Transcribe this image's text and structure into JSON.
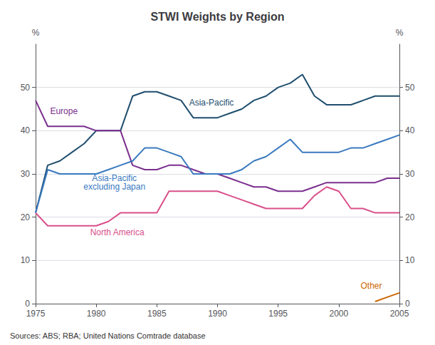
{
  "chart_data": {
    "type": "line",
    "title": "STWI Weights by Region",
    "source": "Sources: ABS; RBA; United Nations Comtrade database",
    "ylabel": "%",
    "y2label": "%",
    "x": [
      1975,
      1976,
      1977,
      1978,
      1979,
      1980,
      1981,
      1982,
      1983,
      1984,
      1985,
      1986,
      1987,
      1988,
      1989,
      1990,
      1991,
      1992,
      1993,
      1994,
      1995,
      1996,
      1997,
      1998,
      1999,
      2000,
      2001,
      2002,
      2003,
      2004,
      2005
    ],
    "series": [
      {
        "name": "Asia-Pacific",
        "color": "#1f4e6e",
        "values": [
          21,
          32,
          33,
          35,
          37,
          40,
          40,
          40,
          48,
          49,
          49,
          48,
          47,
          43,
          43,
          43,
          44,
          45,
          47,
          48,
          50,
          51,
          53,
          48,
          46,
          46,
          46,
          47,
          48,
          48,
          48
        ]
      },
      {
        "name": "Europe",
        "color": "#7b2f8e",
        "values": [
          47,
          41,
          41,
          41,
          41,
          40,
          40,
          40,
          32,
          31,
          31,
          32,
          32,
          31,
          30,
          30,
          29,
          28,
          27,
          27,
          26,
          26,
          26,
          27,
          28,
          28,
          28,
          28,
          28,
          29,
          29
        ]
      },
      {
        "name": "Asia-Pacific excluding Japan",
        "color": "#3a7abf",
        "values": [
          21,
          31,
          30,
          30,
          30,
          30,
          31,
          32,
          33,
          36,
          36,
          35,
          34,
          30,
          30,
          30,
          30,
          31,
          33,
          34,
          36,
          38,
          35,
          35,
          35,
          35,
          36,
          36,
          37,
          38,
          39
        ]
      },
      {
        "name": "North America",
        "color": "#d94f8a",
        "values": [
          21,
          18,
          18,
          18,
          18,
          18,
          19,
          21,
          21,
          21,
          21,
          26,
          26,
          26,
          26,
          26,
          25,
          24,
          23,
          22,
          22,
          22,
          22,
          25,
          27,
          26,
          22,
          22,
          21,
          21,
          21
        ]
      },
      {
        "name": "Other",
        "color": "#cc6600",
        "values": [
          null,
          null,
          null,
          null,
          null,
          null,
          null,
          null,
          null,
          null,
          null,
          null,
          null,
          null,
          null,
          null,
          null,
          null,
          null,
          null,
          null,
          null,
          null,
          null,
          null,
          null,
          null,
          null,
          0.5,
          1.5,
          2.5
        ]
      }
    ],
    "xlim": [
      1975,
      2005
    ],
    "xticks": [
      1975,
      1980,
      1985,
      1990,
      1995,
      2000,
      2005
    ],
    "ylim": [
      0,
      60
    ],
    "yticks": [
      0,
      10,
      20,
      30,
      40,
      50
    ],
    "y2lim": [
      0,
      60
    ],
    "y2ticks": [
      0,
      10,
      20,
      30,
      40,
      50
    ],
    "grid": true,
    "annotations": [
      {
        "text": "Asia-Pacific",
        "x": 1989.5,
        "y": 45.5,
        "color": "#1f4e6e",
        "align": "center"
      },
      {
        "text": "Europe",
        "x": 1976.2,
        "y": 43.5,
        "color": "#7b2f8e",
        "align": "left"
      },
      {
        "text": "Asia-Pacific\nexcluding Japan",
        "x": 1981.5,
        "y": 26.0,
        "color": "#3a7abf",
        "align": "center"
      },
      {
        "text": "North America",
        "x": 1979.5,
        "y": 15.5,
        "color": "#d94f8a",
        "align": "left"
      },
      {
        "text": "Other",
        "x": 2001.8,
        "y": 3.2,
        "color": "#cc6600",
        "align": "left"
      }
    ]
  }
}
